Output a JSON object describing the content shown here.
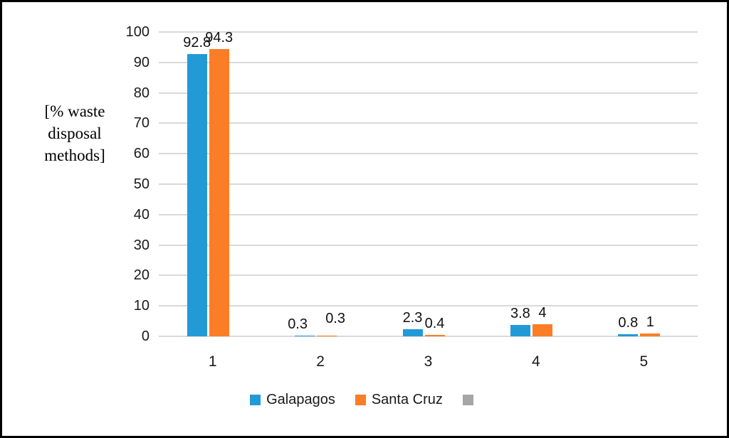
{
  "figure": {
    "background": "#FFFFFF",
    "border_color": "#000000",
    "gridline_color": "#D9D9D9",
    "text_color": "#1A1A1A"
  },
  "chart_data": {
    "type": "bar",
    "title": "",
    "xlabel": "",
    "ylabel": "[% waste\ndisposal\nmethods]",
    "categories": [
      "1",
      "2",
      "3",
      "4",
      "5"
    ],
    "series": [
      {
        "name": "Galapagos",
        "color": "#229AD6",
        "values": [
          92.8,
          0.3,
          2.3,
          3.8,
          0.8
        ],
        "data_labels": [
          "92.8",
          "0.3",
          "2.3",
          "3.8",
          "0.8"
        ]
      },
      {
        "name": "Santa Cruz",
        "color": "#FB7D26",
        "values": [
          94.3,
          0.3,
          0.4,
          4,
          1
        ],
        "data_labels": [
          "94.3",
          "0.3",
          "0.4",
          "4",
          "1"
        ]
      },
      {
        "name": "",
        "color": "#A6A6A6",
        "values": []
      }
    ],
    "ylim": [
      0,
      100
    ],
    "yticks": [
      0,
      10,
      20,
      30,
      40,
      50,
      60,
      70,
      80,
      90,
      100
    ],
    "grid": true,
    "legend_position": "bottom"
  }
}
